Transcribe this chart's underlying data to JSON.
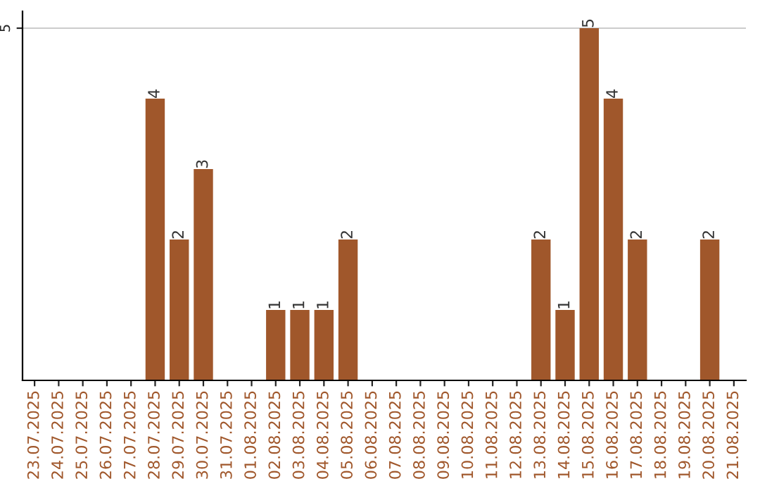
{
  "chart_data": {
    "type": "bar",
    "categories": [
      "23.07.2025",
      "24.07.2025",
      "25.07.2025",
      "26.07.2025",
      "27.07.2025",
      "28.07.2025",
      "29.07.2025",
      "30.07.2025",
      "31.07.2025",
      "01.08.2025",
      "02.08.2025",
      "03.08.2025",
      "04.08.2025",
      "05.08.2025",
      "06.08.2025",
      "07.08.2025",
      "08.08.2025",
      "09.08.2025",
      "10.08.2025",
      "11.08.2025",
      "12.08.2025",
      "13.08.2025",
      "14.08.2025",
      "15.08.2025",
      "16.08.2025",
      "17.08.2025",
      "18.08.2025",
      "19.08.2025",
      "20.08.2025",
      "21.08.2025"
    ],
    "values": [
      0,
      0,
      0,
      0,
      0,
      4,
      2,
      3,
      0,
      0,
      1,
      1,
      1,
      2,
      0,
      0,
      0,
      0,
      0,
      0,
      0,
      2,
      1,
      5,
      4,
      2,
      0,
      0,
      2,
      0
    ],
    "value_labels": [
      null,
      null,
      null,
      null,
      null,
      "4",
      "2",
      "3",
      null,
      null,
      "1",
      "1",
      "1",
      "2",
      null,
      null,
      null,
      null,
      null,
      null,
      null,
      "2",
      "1",
      "5",
      "4",
      "2",
      null,
      null,
      "2",
      null
    ],
    "color": "#a0572b",
    "ylim": [
      0,
      5.24
    ],
    "yticks": [
      5
    ],
    "grid": "y",
    "legend": false
  }
}
